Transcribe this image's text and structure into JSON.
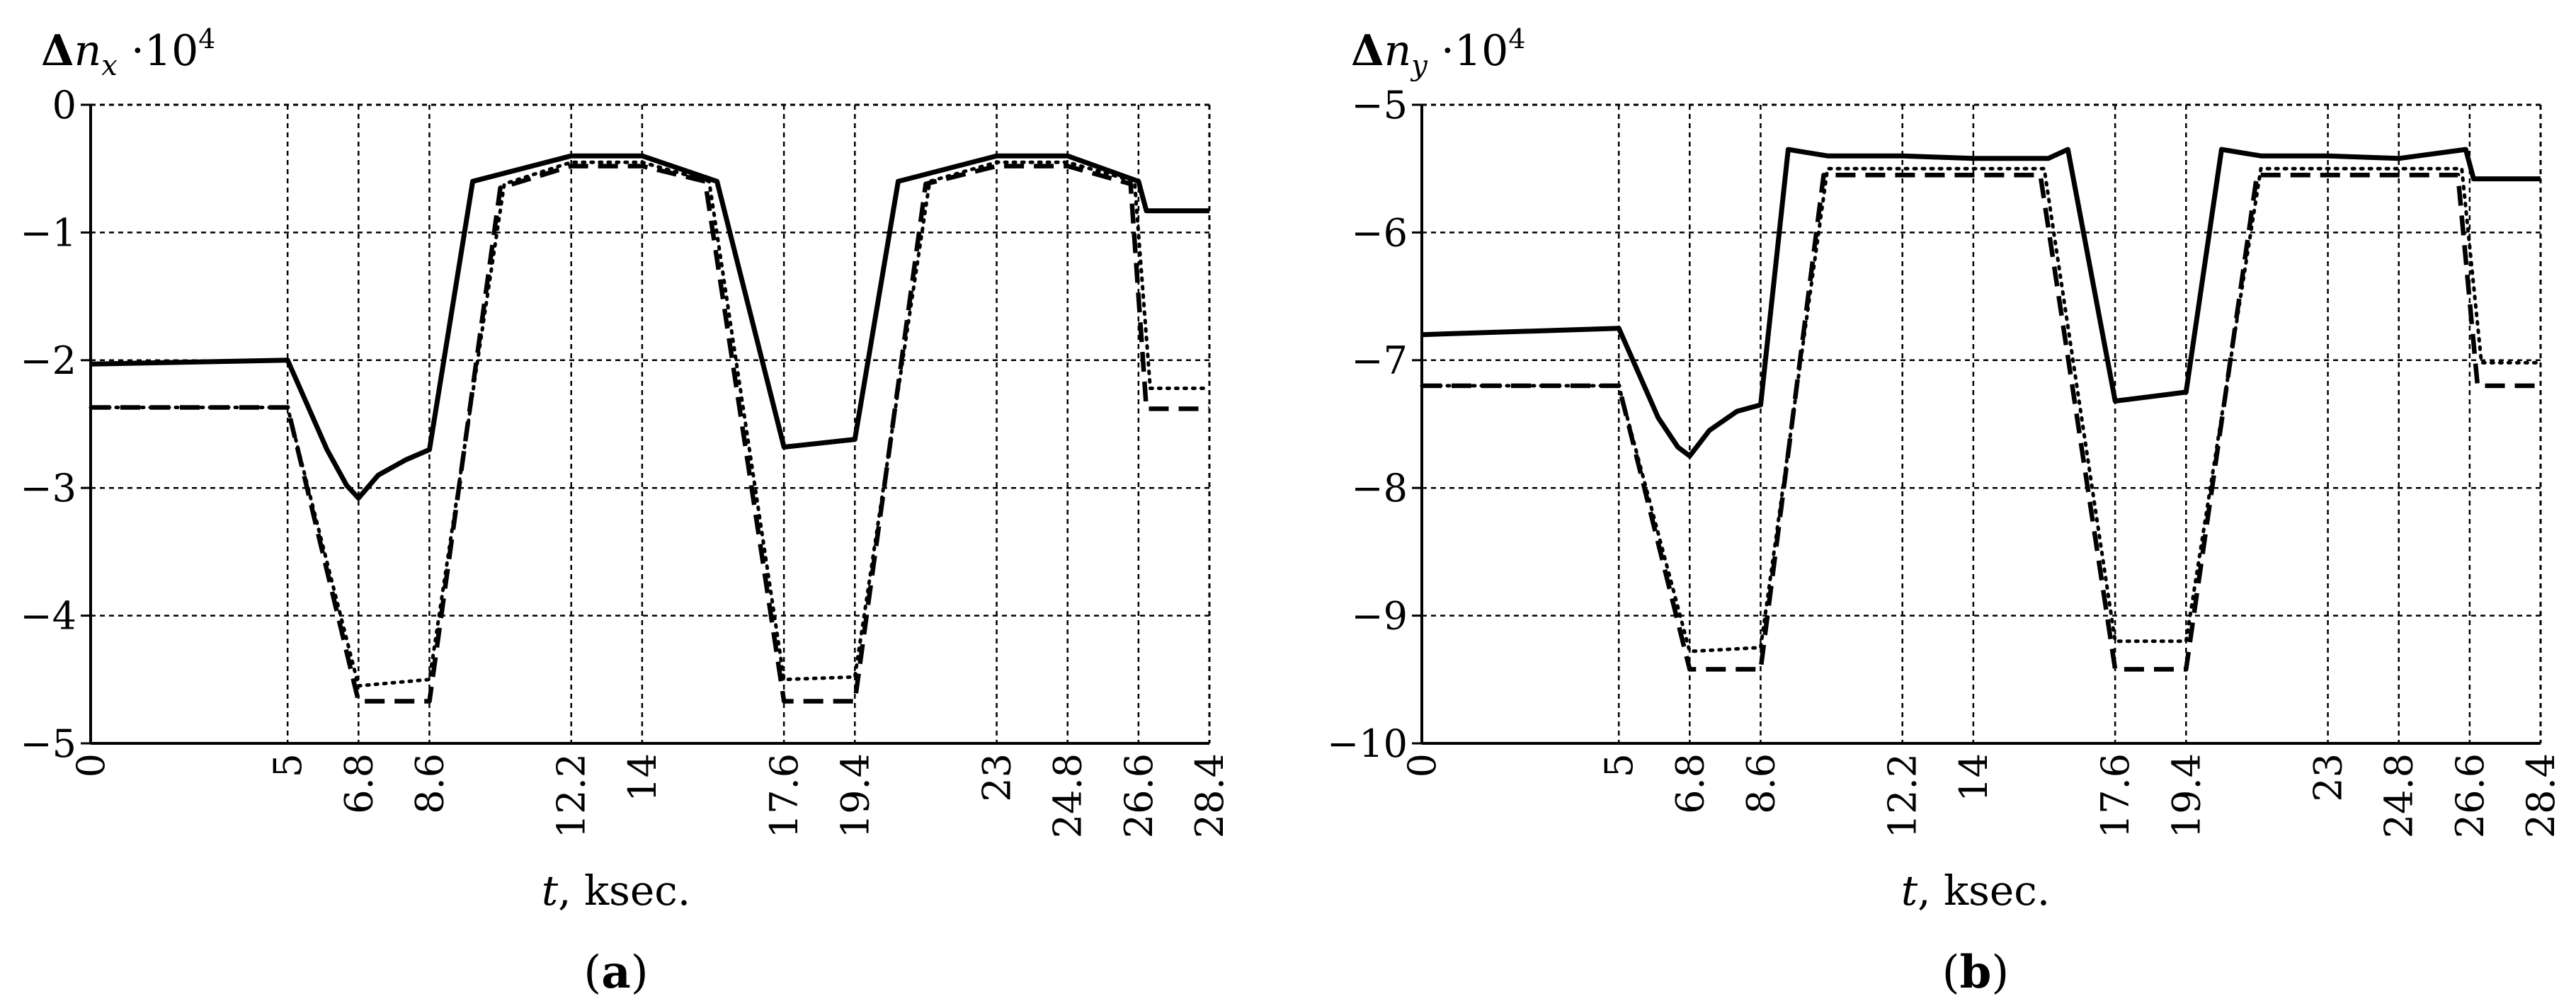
{
  "panels": [
    {
      "label": "(a)",
      "label_letter": "a",
      "y_label_prefix": "Δ",
      "y_label_n": "n",
      "y_label_sub": "x",
      "y_label_mult": " ·10",
      "y_label_exp": "4",
      "x_label_t": "t",
      "x_label_unit": ", ksec."
    },
    {
      "label": "(b)",
      "label_letter": "b",
      "y_label_prefix": "Δ",
      "y_label_n": "n",
      "y_label_sub": "y",
      "y_label_mult": " ·10",
      "y_label_exp": "4",
      "x_label_t": "t",
      "x_label_unit": ", ksec."
    }
  ],
  "chart_data": [
    {
      "type": "line",
      "xlabel": "t, ksec.",
      "ylabel": "Δn_x ·10^4",
      "xlim": [
        0,
        28.4
      ],
      "ylim": [
        -5,
        0
      ],
      "xticks": [
        "0",
        "5",
        "6.8",
        "8.6",
        "12.2",
        "14",
        "17.6",
        "19.4",
        "23",
        "24.8",
        "26.6",
        "28.4"
      ],
      "xtick_values": [
        0,
        5,
        6.8,
        8.6,
        12.2,
        14,
        17.6,
        19.4,
        23,
        24.8,
        26.6,
        28.4
      ],
      "yticks": [
        "0",
        "−1",
        "−2",
        "−3",
        "−4",
        "−5"
      ],
      "ytick_values": [
        0,
        -1,
        -2,
        -3,
        -4,
        -5
      ],
      "grid": true,
      "series": [
        {
          "style": "solid",
          "x": [
            0,
            5,
            5.5,
            6,
            6.5,
            6.8,
            7.3,
            8,
            8.6,
            9.7,
            12.2,
            14,
            15.9,
            17.6,
            19.4,
            20.5,
            23,
            24.8,
            26.6,
            26.8,
            28.4
          ],
          "y": [
            -2.03,
            -2.0,
            -2.35,
            -2.7,
            -2.98,
            -3.08,
            -2.9,
            -2.78,
            -2.7,
            -0.6,
            -0.4,
            -0.4,
            -0.6,
            -2.68,
            -2.62,
            -0.6,
            -0.4,
            -0.4,
            -0.6,
            -0.83,
            -0.83
          ]
        },
        {
          "style": "dotted",
          "x": [
            0,
            5,
            6.8,
            8.6,
            10.5,
            12.2,
            14,
            15.7,
            17.6,
            19.4,
            21.3,
            23,
            24.8,
            26.5,
            26.9,
            28.4
          ],
          "y": [
            -2.37,
            -2.37,
            -4.55,
            -4.5,
            -0.62,
            -0.45,
            -0.45,
            -0.6,
            -4.5,
            -4.48,
            -0.6,
            -0.45,
            -0.45,
            -0.6,
            -2.22,
            -2.22
          ]
        },
        {
          "style": "dashed",
          "x": [
            0,
            5,
            6.8,
            8.6,
            10.4,
            12.2,
            14,
            15.6,
            17.6,
            19.4,
            21.2,
            23,
            24.8,
            26.4,
            26.8,
            28.4
          ],
          "y": [
            -2.37,
            -2.37,
            -4.67,
            -4.67,
            -0.65,
            -0.48,
            -0.48,
            -0.6,
            -4.67,
            -4.67,
            -0.62,
            -0.48,
            -0.48,
            -0.62,
            -2.38,
            -2.38
          ]
        }
      ]
    },
    {
      "type": "line",
      "xlabel": "t, ksec.",
      "ylabel": "Δn_y ·10^4",
      "xlim": [
        0,
        28.4
      ],
      "ylim": [
        -10,
        -5
      ],
      "xticks": [
        "0",
        "5",
        "6.8",
        "8.6",
        "12.2",
        "14",
        "17.6",
        "19.4",
        "23",
        "24.8",
        "26.6",
        "28.4"
      ],
      "xtick_values": [
        0,
        5,
        6.8,
        8.6,
        12.2,
        14,
        17.6,
        19.4,
        23,
        24.8,
        26.6,
        28.4
      ],
      "yticks": [
        "−5",
        "−6",
        "−7",
        "−8",
        "−9",
        "−10"
      ],
      "ytick_values": [
        -5,
        -6,
        -7,
        -8,
        -9,
        -10
      ],
      "grid": true,
      "series": [
        {
          "style": "solid",
          "x": [
            0,
            5,
            5.5,
            6,
            6.5,
            6.8,
            7.3,
            8,
            8.6,
            9.3,
            10.3,
            12.2,
            14,
            15.9,
            16.4,
            17.6,
            19.4,
            20.3,
            21.3,
            23,
            24.8,
            26.5,
            26.7,
            28.4
          ],
          "y": [
            -6.8,
            -6.75,
            -7.1,
            -7.45,
            -7.68,
            -7.75,
            -7.55,
            -7.4,
            -7.35,
            -5.35,
            -5.4,
            -5.4,
            -5.42,
            -5.42,
            -5.35,
            -7.32,
            -7.25,
            -5.35,
            -5.4,
            -5.4,
            -5.42,
            -5.35,
            -5.58,
            -5.58
          ]
        },
        {
          "style": "dotted",
          "x": [
            0,
            5,
            6.8,
            8.6,
            10.3,
            12.2,
            14,
            15.8,
            17.6,
            19.4,
            21.3,
            23,
            24.8,
            26.4,
            26.9,
            28.4
          ],
          "y": [
            -7.2,
            -7.2,
            -9.28,
            -9.25,
            -5.5,
            -5.5,
            -5.5,
            -5.5,
            -9.2,
            -9.2,
            -5.5,
            -5.5,
            -5.5,
            -5.5,
            -7.02,
            -7.02
          ]
        },
        {
          "style": "dashed",
          "x": [
            0,
            5,
            6.8,
            8.6,
            10.2,
            12.2,
            14,
            15.7,
            17.6,
            19.4,
            21.2,
            23,
            24.8,
            26.3,
            26.8,
            28.4
          ],
          "y": [
            -7.2,
            -7.2,
            -9.42,
            -9.42,
            -5.55,
            -5.55,
            -5.55,
            -5.55,
            -9.42,
            -9.42,
            -5.55,
            -5.55,
            -5.55,
            -5.55,
            -7.2,
            -7.2
          ]
        }
      ]
    }
  ]
}
